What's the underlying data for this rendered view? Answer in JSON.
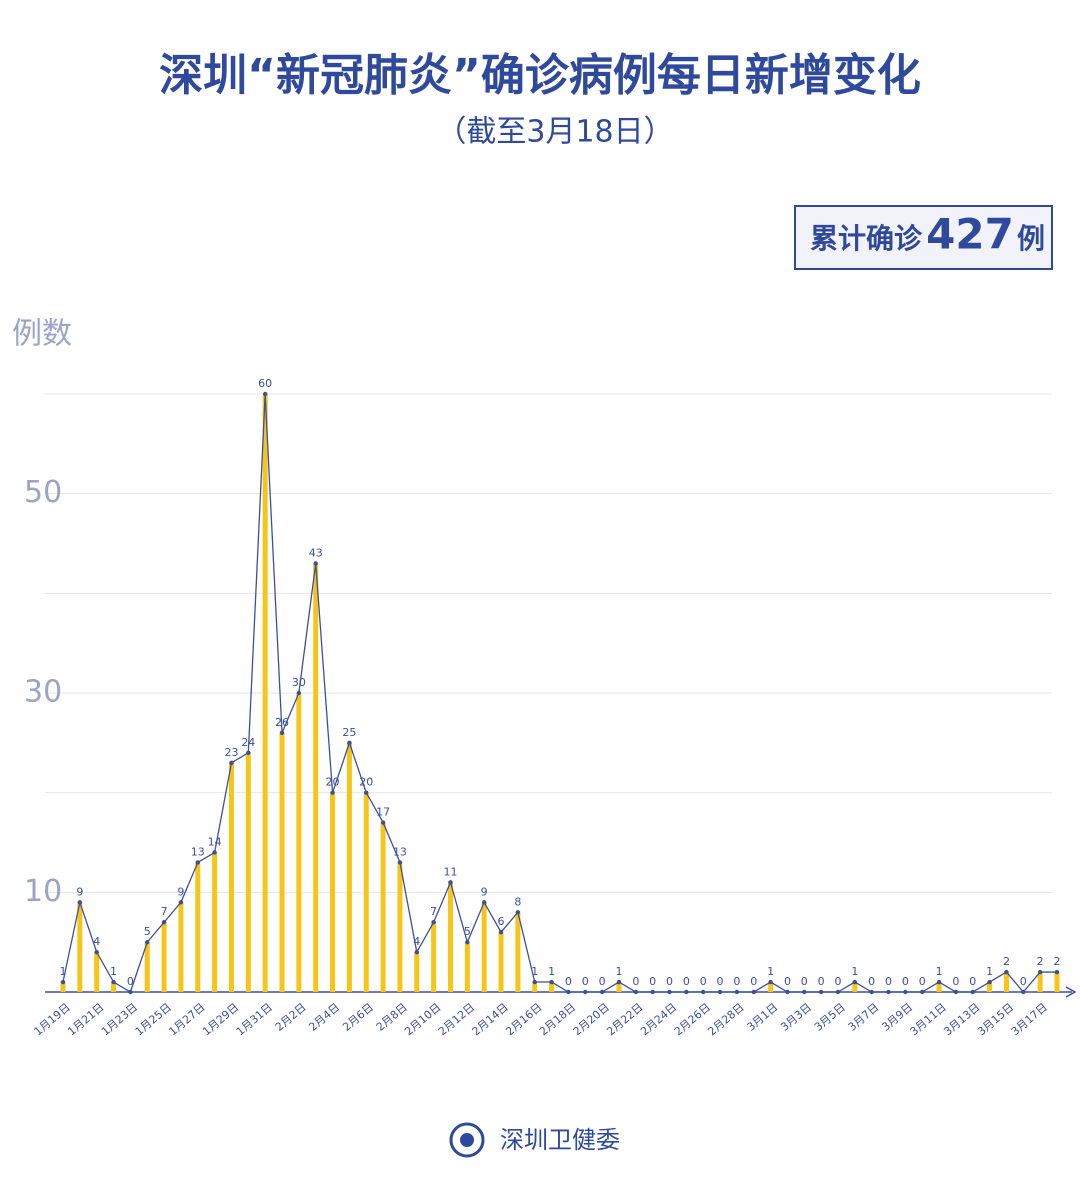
{
  "chart_data": {
    "type": "bar-line",
    "title": "深圳“新冠肺炎”确诊病例每日新增变化",
    "subtitle": "（截至3月18日）",
    "y_label": "例数",
    "summary": {
      "label": "累计确诊",
      "value": 427,
      "unit": "例"
    },
    "source": "深圳卫健委",
    "categories": [
      "1月19日",
      null,
      "1月21日",
      null,
      "1月23日",
      null,
      "1月25日",
      null,
      "1月27日",
      null,
      "1月29日",
      null,
      "1月31日",
      null,
      "2月2日",
      null,
      "2月4日",
      null,
      "2月6日",
      null,
      "2月8日",
      null,
      "2月10日",
      null,
      "2月12日",
      null,
      "2月14日",
      null,
      "2月16日",
      null,
      "2月18日",
      null,
      "2月20日",
      null,
      "2月22日",
      null,
      "2月24日",
      null,
      "2月26日",
      null,
      "2月28日",
      null,
      "3月1日",
      null,
      "3月3日",
      null,
      "3月5日",
      null,
      "3月7日",
      null,
      "3月9日",
      null,
      "3月11日",
      null,
      "3月13日",
      null,
      "3月15日",
      null,
      "3月17日",
      null
    ],
    "values": [
      1,
      9,
      4,
      1,
      0,
      5,
      7,
      9,
      13,
      14,
      23,
      24,
      60,
      26,
      30,
      43,
      20,
      25,
      20,
      17,
      13,
      4,
      7,
      11,
      5,
      9,
      6,
      8,
      1,
      1,
      0,
      0,
      0,
      1,
      0,
      0,
      0,
      0,
      0,
      0,
      0,
      0,
      1,
      0,
      0,
      0,
      0,
      1,
      0,
      0,
      0,
      0,
      1,
      0,
      0,
      1,
      2,
      0,
      2,
      2
    ],
    "bar_color": "#f5c518",
    "line_color": "#3b4f9e",
    "ylim": [
      0,
      60
    ],
    "yticks": [
      10,
      30,
      50
    ],
    "grid_yticks": [
      20,
      40,
      60
    ],
    "grid": true
  }
}
